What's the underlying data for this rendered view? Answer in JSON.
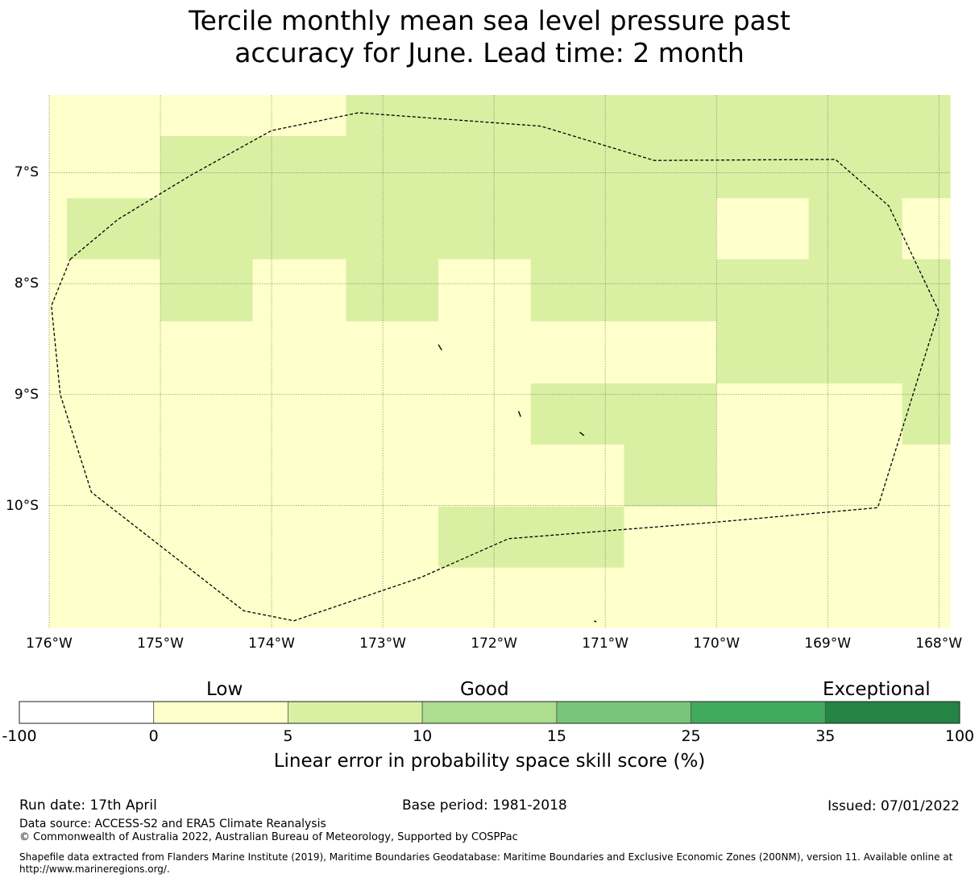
{
  "title_line1": "Tercile monthly mean sea level pressure past",
  "title_line2": "accuracy for June. Lead time: 2 month",
  "map": {
    "lon_range": [
      -176,
      -167.9
    ],
    "lat_range": [
      -6.3,
      -11.1
    ],
    "x_ticks": [
      {
        "lon": -176,
        "label": "176°W"
      },
      {
        "lon": -175,
        "label": "175°W"
      },
      {
        "lon": -174,
        "label": "174°W"
      },
      {
        "lon": -173,
        "label": "173°W"
      },
      {
        "lon": -172,
        "label": "172°W"
      },
      {
        "lon": -171,
        "label": "171°W"
      },
      {
        "lon": -170,
        "label": "170°W"
      },
      {
        "lon": -169,
        "label": "169°W"
      },
      {
        "lon": -168,
        "label": "168°W"
      }
    ],
    "y_ticks": [
      {
        "lat": -7,
        "label": "7°S"
      },
      {
        "lat": -8,
        "label": "8°S"
      },
      {
        "lat": -9,
        "label": "9°S"
      },
      {
        "lat": -10,
        "label": "10°S"
      }
    ],
    "grid_lon_edges": [
      -176,
      -175.84,
      -175,
      -174.17,
      -173.33,
      -172.5,
      -171.67,
      -170.83,
      -170,
      -169.17,
      -168.33,
      -167.9
    ],
    "grid_lat_edges": [
      -6.3,
      -6.67,
      -7.23,
      -7.78,
      -8.34,
      -8.9,
      -9.45,
      -10.01,
      -10.56,
      -11.1
    ],
    "cells": [
      [
        1,
        1,
        1,
        1,
        2,
        2,
        2,
        2,
        2,
        2,
        2
      ],
      [
        1,
        1,
        2,
        2,
        2,
        2,
        2,
        2,
        2,
        2,
        2
      ],
      [
        1,
        2,
        2,
        2,
        2,
        2,
        2,
        2,
        1,
        2,
        1
      ],
      [
        1,
        1,
        2,
        1,
        2,
        1,
        2,
        2,
        2,
        2,
        2
      ],
      [
        1,
        1,
        1,
        1,
        1,
        1,
        1,
        1,
        2,
        2,
        2
      ],
      [
        1,
        1,
        1,
        1,
        1,
        1,
        2,
        2,
        1,
        1,
        2
      ],
      [
        1,
        1,
        1,
        1,
        1,
        1,
        1,
        2,
        1,
        1,
        1
      ],
      [
        1,
        1,
        1,
        1,
        1,
        2,
        2,
        1,
        1,
        1,
        1
      ],
      [
        1,
        1,
        1,
        1,
        1,
        1,
        1,
        1,
        1,
        1,
        1
      ]
    ],
    "eez_boundary": [
      [
        -175.81,
        -7.78
      ],
      [
        -175.38,
        -7.42
      ],
      [
        -174.72,
        -7.02
      ],
      [
        -174.0,
        -6.62
      ],
      [
        -173.22,
        -6.46
      ],
      [
        -171.58,
        -6.58
      ],
      [
        -170.56,
        -6.89
      ],
      [
        -168.93,
        -6.88
      ],
      [
        -168.45,
        -7.3
      ],
      [
        -168.0,
        -8.25
      ],
      [
        -168.55,
        -10.02
      ],
      [
        -170.0,
        -10.15
      ],
      [
        -171.87,
        -10.3
      ],
      [
        -172.66,
        -10.65
      ],
      [
        -173.8,
        -11.04
      ],
      [
        -174.25,
        -10.95
      ],
      [
        -175.62,
        -9.88
      ],
      [
        -175.9,
        -9.0
      ],
      [
        -175.98,
        -8.2
      ],
      [
        -175.81,
        -7.78
      ]
    ],
    "islands": [
      [
        [
          -172.5,
          -8.55
        ],
        [
          -172.47,
          -8.6
        ]
      ],
      [
        [
          -171.78,
          -9.15
        ],
        [
          -171.76,
          -9.2
        ]
      ],
      [
        [
          -171.23,
          -9.34
        ],
        [
          -171.19,
          -9.37
        ]
      ],
      [
        [
          -171.1,
          -11.04
        ],
        [
          -171.08,
          -11.05
        ]
      ]
    ]
  },
  "legend": {
    "colors": [
      "#ffffff",
      "#ffffcc",
      "#d9f0a3",
      "#addd8e",
      "#78c679",
      "#41ab5d",
      "#238443"
    ],
    "tick_labels": [
      "-100",
      "0",
      "5",
      "10",
      "15",
      "25",
      "35",
      "100"
    ],
    "category_low": "Low",
    "category_good": "Good",
    "category_exceptional": "Exceptional",
    "title": "Linear error in probability space skill score (%)"
  },
  "footer": {
    "run_date": "Run date: 17th April",
    "base_period": "Base period: 1981-2018",
    "issued": "Issued: 07/01/2022",
    "data_source": "Data source: ACCESS-S2 and ERA5 Climate Reanalysis",
    "copyright": "© Commonwealth of Australia 2022, Australian Bureau of Meteorology, Supported by COSPPac",
    "shapefile": "Shapefile data extracted from Flanders Marine Institute (2019), Maritime Boundaries Geodatabase: Maritime Boundaries and Exclusive Economic Zones (200NM), version 11. Available online at http://www.marineregions.org/."
  }
}
